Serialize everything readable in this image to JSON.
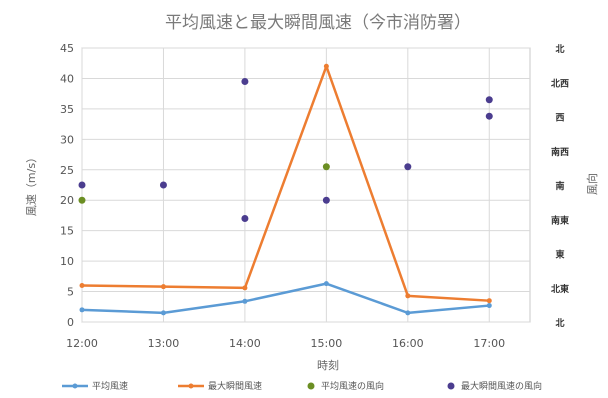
{
  "chart_data": {
    "type": "line",
    "title": "平均風速と最大瞬間風速（今市消防署）",
    "xlabel": "時刻",
    "ylabel": "風速（m/s）",
    "y2label": "風向",
    "x": [
      "12:00",
      "13:00",
      "14:00",
      "15:00",
      "16:00",
      "17:00"
    ],
    "ylim": [
      0,
      45
    ],
    "yticks": [
      0,
      5,
      10,
      15,
      20,
      25,
      30,
      35,
      40,
      45
    ],
    "y2_categories": [
      "北",
      "北東",
      "東",
      "南東",
      "南",
      "南西",
      "西",
      "北西",
      "北"
    ],
    "grid": true,
    "legend_position": "bottom",
    "series": [
      {
        "name": "平均風速",
        "kind": "line",
        "color": "#5b9bd5",
        "values": [
          2.0,
          1.5,
          3.4,
          6.3,
          1.5,
          2.7
        ]
      },
      {
        "name": "最大瞬間風速",
        "kind": "line",
        "color": "#ed7d31",
        "values": [
          6.0,
          5.8,
          5.6,
          42.0,
          4.3,
          3.5
        ]
      },
      {
        "name": "平均風速の風向",
        "kind": "scatter",
        "color": "#6b8e23",
        "values": [
          20,
          null,
          null,
          25.5,
          null,
          null
        ]
      },
      {
        "name": "最大瞬間風速の風向",
        "kind": "scatter",
        "color": "#4b3d8f",
        "values": [
          22.5,
          22.5,
          17,
          20,
          25.5,
          36.5
        ],
        "extra": [
          [
            5,
            33.8
          ],
          [
            2,
            39.5
          ]
        ]
      }
    ]
  }
}
